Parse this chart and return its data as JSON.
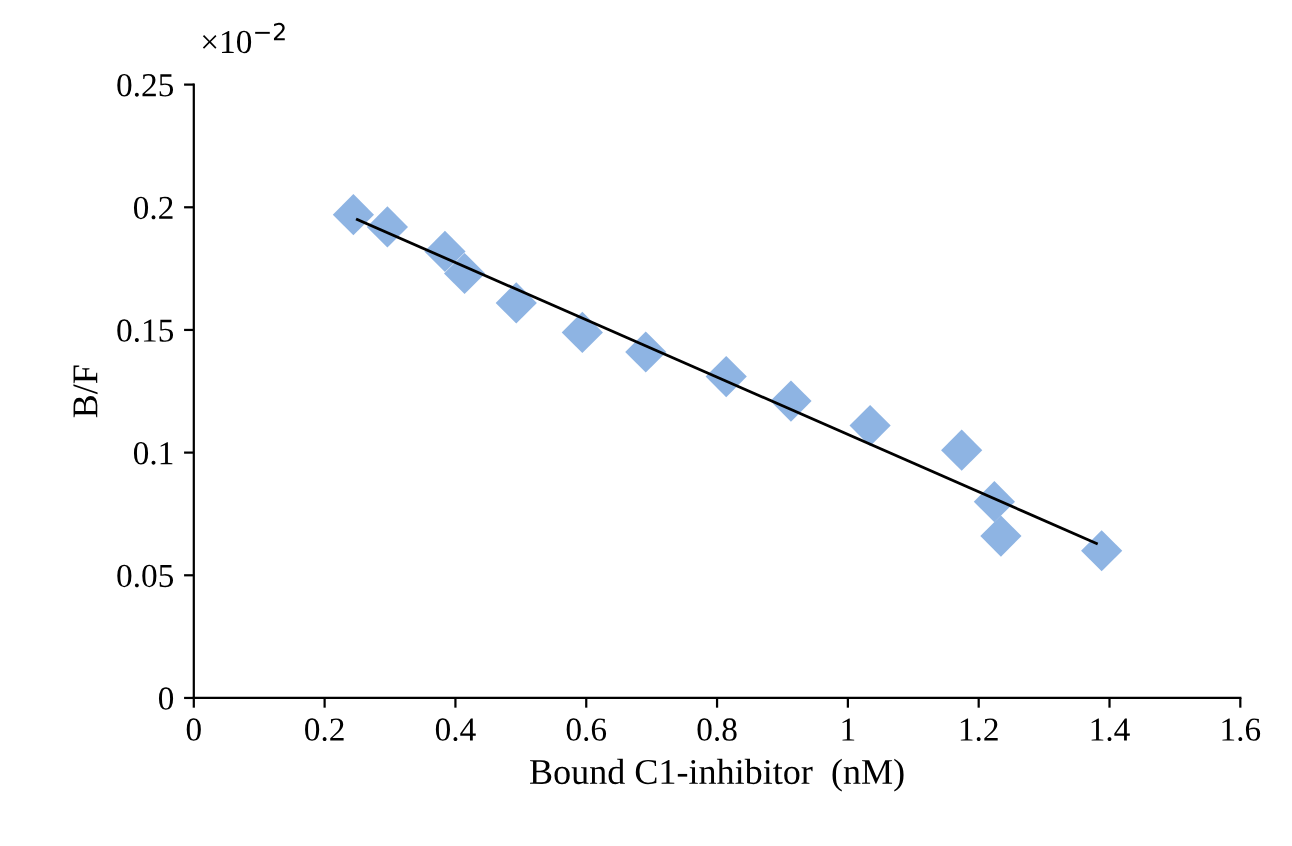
{
  "chart_data": {
    "type": "scatter",
    "xlabel": "Bound C1-inhibitor  (nM)",
    "ylabel": "B/F",
    "annotations": [
      "×10$^{−2}$"
    ],
    "xlim": [
      0,
      1.6
    ],
    "xticks": [
      0,
      0.2,
      0.4,
      0.6,
      0.8,
      1,
      1.2,
      1.4,
      1.6
    ],
    "ylim": [
      0,
      0.25
    ],
    "yticks": [
      0,
      0.05,
      0.1,
      0.15,
      0.2,
      0.25
    ],
    "grid": false,
    "legend": false,
    "marker": "diamond",
    "series": [
      {
        "color": "#8eb4e3",
        "x": [
          0.244,
          0.296,
          0.384,
          0.414,
          0.493,
          0.594,
          0.691,
          0.814,
          0.913,
          1.034,
          1.174,
          1.224,
          1.234,
          1.388
        ],
        "values": [
          0.197,
          0.192,
          0.182,
          0.173,
          0.161,
          0.149,
          0.141,
          0.131,
          0.121,
          0.111,
          0.101,
          0.08,
          0.066,
          0.06
        ]
      },
      {
        "type": "line",
        "color": "#000000",
        "x": [
          0.25,
          1.38
        ],
        "values": [
          0.195,
          0.063
        ],
        "marker": "none",
        "line_style": "solid"
      }
    ]
  }
}
